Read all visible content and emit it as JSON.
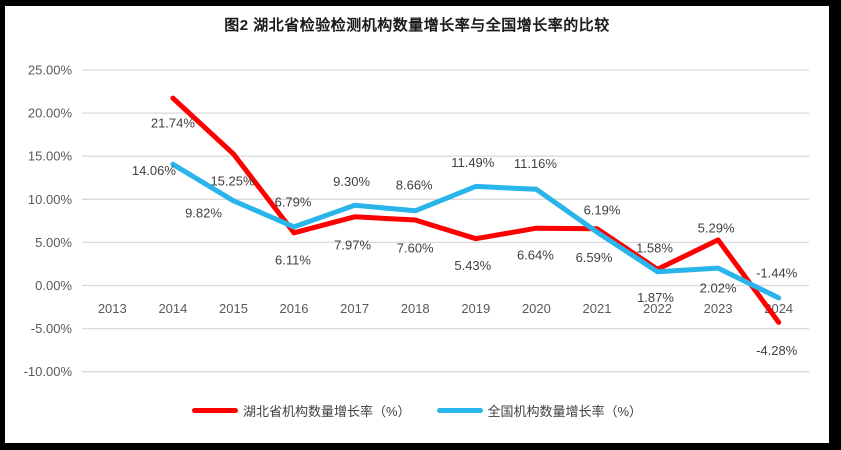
{
  "chart_data": {
    "type": "line",
    "title": "图2  湖北省检验检测机构数量增长率与全国增长率的比较",
    "categories": [
      "2013",
      "2014",
      "2015",
      "2016",
      "2017",
      "2018",
      "2019",
      "2020",
      "2021",
      "2022",
      "2023",
      "2024"
    ],
    "series": [
      {
        "id": "hubei",
        "name": "湖北省机构数量增长率（%）",
        "color": "#FF0000",
        "values": [
          null,
          21.74,
          15.25,
          6.11,
          7.97,
          7.6,
          5.43,
          6.64,
          6.59,
          1.87,
          5.29,
          -4.28
        ],
        "labels": [
          null,
          "21.74%",
          "15.25%",
          "6.11%",
          "7.97%",
          "7.60%",
          "5.43%",
          "6.64%",
          "6.59%",
          "1.87%",
          "5.29%",
          "-4.28%"
        ],
        "label_offsets": [
          null,
          [
            0,
            25
          ],
          [
            -1,
            27
          ],
          [
            -1,
            27
          ],
          [
            -2,
            28
          ],
          [
            0,
            28
          ],
          [
            -3,
            27
          ],
          [
            -1,
            27
          ],
          [
            -3,
            29
          ],
          [
            -2,
            28
          ],
          [
            -2,
            -12
          ],
          [
            -2,
            28
          ]
        ]
      },
      {
        "id": "national",
        "name": "全国机构数量增长率（%）",
        "color": "#29B4EA",
        "values": [
          null,
          14.06,
          9.82,
          6.79,
          9.3,
          8.66,
          11.49,
          11.16,
          6.19,
          1.58,
          2.02,
          -1.44
        ],
        "labels": [
          null,
          "14.06%",
          "9.82%",
          "6.79%",
          "9.30%",
          "8.66%",
          "11.49%",
          "11.16%",
          "6.19%",
          "1.58%",
          "2.02%",
          "-1.44%"
        ],
        "label_offsets": [
          null,
          [
            -19,
            6
          ],
          [
            -30,
            12
          ],
          [
            -1,
            -25
          ],
          [
            -3,
            -24
          ],
          [
            -1,
            -26
          ],
          [
            -3,
            -24
          ],
          [
            -1,
            -26
          ],
          [
            5,
            -22
          ],
          [
            -3,
            -24
          ],
          [
            0,
            20
          ],
          [
            -2,
            -25
          ]
        ]
      }
    ],
    "y_axis": {
      "min": -10,
      "max": 25,
      "step": 5,
      "tick_values": [
        25,
        20,
        15,
        10,
        5,
        0,
        -5,
        -10
      ],
      "tick_labels": [
        "25.00%",
        "20.00%",
        "15.00%",
        "10.00%",
        "5.00%",
        "0.00%",
        "-5.00%",
        "-10.00%"
      ]
    },
    "grid": true,
    "legend_position": "bottom",
    "colors": {
      "gridline": "#D9D9D9",
      "axis_text": "#595959",
      "data_label_text": "#404040",
      "title_text": "#1A1A1A",
      "frame": "#000000",
      "background": "#FFFFFF"
    }
  }
}
